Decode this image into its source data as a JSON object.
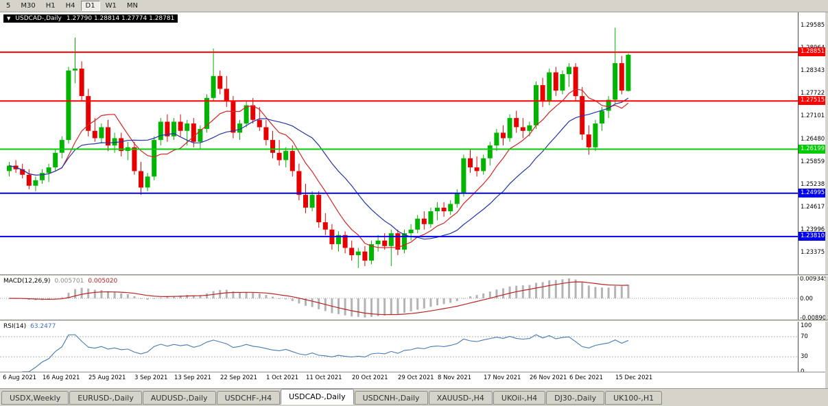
{
  "toolbar": {
    "timeframes": [
      "5",
      "M30",
      "H1",
      "H4",
      "D1",
      "W1",
      "MN"
    ],
    "active": "D1"
  },
  "chart": {
    "marker": "▼",
    "title": "USDCAD-,Daily",
    "ohlc": "1.27790 1.28814 1.27774 1.28781"
  },
  "indicators": {
    "macd": {
      "name": "MACD(12,26,9)",
      "value_main": "0.005701",
      "value_signal": "0.005020",
      "axis": [
        "0.009345",
        "0.00",
        "-0.00890"
      ]
    },
    "rsi": {
      "name": "RSI(14)",
      "value": "63.2477",
      "axis": [
        "100",
        "70",
        "30",
        "0"
      ],
      "levels": [
        70,
        30
      ]
    }
  },
  "tabs": [
    {
      "label": "USDX,Weekly"
    },
    {
      "label": "EURUSD-,Daily"
    },
    {
      "label": "AUDUSD-,Daily"
    },
    {
      "label": "USDCHF-,H4"
    },
    {
      "label": "USDCAD-,Daily",
      "active": true
    },
    {
      "label": "USDCNH-,Daily"
    },
    {
      "label": "XAUUSD-,H4"
    },
    {
      "label": "UKOil-,H4"
    },
    {
      "label": "DJ30-,Daily"
    },
    {
      "label": "UK100-,H1"
    }
  ],
  "chart_data": {
    "type": "candlestick",
    "symbol": "USDCAD",
    "period": "Daily",
    "last_ohlc": {
      "open": 1.2779,
      "high": 1.28814,
      "low": 1.27774,
      "close": 1.28781
    },
    "price_scale": {
      "max": 1.2994,
      "min": 1.22777
    },
    "y_axis_labels": [
      "1.29585",
      "1.28964",
      "1.28343",
      "1.27722",
      "1.27101",
      "1.26480",
      "1.25859",
      "1.25238",
      "1.24617",
      "1.23996",
      "1.23375"
    ],
    "x_labels": [
      {
        "label": "6 Aug 2021",
        "i": 0
      },
      {
        "label": "16 Aug 2021",
        "i": 6
      },
      {
        "label": "25 Aug 2021",
        "i": 13
      },
      {
        "label": "3 Sep 2021",
        "i": 20
      },
      {
        "label": "13 Sep 2021",
        "i": 26
      },
      {
        "label": "22 Sep 2021",
        "i": 33
      },
      {
        "label": "1 Oct 2021",
        "i": 40
      },
      {
        "label": "11 Oct 2021",
        "i": 46
      },
      {
        "label": "20 Oct 2021",
        "i": 53
      },
      {
        "label": "29 Oct 2021",
        "i": 60
      },
      {
        "label": "8 Nov 2021",
        "i": 66
      },
      {
        "label": "17 Nov 2021",
        "i": 73
      },
      {
        "label": "26 Nov 2021",
        "i": 80
      },
      {
        "label": "6 Dec 2021",
        "i": 86
      },
      {
        "label": "15 Dec 2021",
        "i": 93
      }
    ],
    "hlines": [
      {
        "price": 1.28851,
        "label": "1.28851",
        "color": "#ff0000"
      },
      {
        "price": 1.27515,
        "label": "1.27515",
        "color": "#ff0000"
      },
      {
        "price": 1.26199,
        "label": "1.26199",
        "color": "#00cc00"
      },
      {
        "price": 1.24995,
        "label": "1.24995",
        "color": "#0000ee"
      },
      {
        "price": 1.2381,
        "label": "1.23810",
        "color": "#0000ee"
      }
    ],
    "moving_averages": [
      {
        "period": 8,
        "color": "#d42424"
      },
      {
        "period": 17,
        "color": "#2233aa"
      }
    ],
    "colors": {
      "up": "#00b400",
      "down": "#e60000",
      "macd_hist": "#b4b4b4",
      "macd_signal": "#bb2222",
      "rsi": "#4579b4"
    },
    "ohlc": [
      [
        1.256,
        1.2585,
        1.2545,
        1.2575
      ],
      [
        1.2575,
        1.259,
        1.2555,
        1.2565
      ],
      [
        1.2565,
        1.258,
        1.254,
        1.255
      ],
      [
        1.255,
        1.2565,
        1.251,
        1.252
      ],
      [
        1.252,
        1.2545,
        1.2505,
        1.2535
      ],
      [
        1.2535,
        1.2565,
        1.2525,
        1.2555
      ],
      [
        1.2555,
        1.258,
        1.253,
        1.257
      ],
      [
        1.257,
        1.262,
        1.256,
        1.261
      ],
      [
        1.261,
        1.2655,
        1.2595,
        1.2645
      ],
      [
        1.2645,
        1.2845,
        1.2635,
        1.2835
      ],
      [
        1.2835,
        1.2925,
        1.28,
        1.284
      ],
      [
        1.284,
        1.286,
        1.275,
        1.2765
      ],
      [
        1.2765,
        1.2785,
        1.2655,
        1.267
      ],
      [
        1.267,
        1.2705,
        1.264,
        1.265
      ],
      [
        1.265,
        1.269,
        1.2635,
        1.268
      ],
      [
        1.268,
        1.27,
        1.2615,
        1.263
      ],
      [
        1.263,
        1.2665,
        1.261,
        1.265
      ],
      [
        1.265,
        1.2665,
        1.26,
        1.2615
      ],
      [
        1.2615,
        1.264,
        1.259,
        1.2625
      ],
      [
        1.2625,
        1.264,
        1.255,
        1.256
      ],
      [
        1.256,
        1.2585,
        1.2495,
        1.2515
      ],
      [
        1.2515,
        1.2555,
        1.2505,
        1.2545
      ],
      [
        1.2545,
        1.2655,
        1.2535,
        1.2645
      ],
      [
        1.2645,
        1.2705,
        1.263,
        1.2695
      ],
      [
        1.2695,
        1.2715,
        1.264,
        1.2655
      ],
      [
        1.2655,
        1.2705,
        1.2645,
        1.2695
      ],
      [
        1.2695,
        1.2715,
        1.2655,
        1.267
      ],
      [
        1.267,
        1.27,
        1.263,
        1.269
      ],
      [
        1.269,
        1.2705,
        1.2625,
        1.264
      ],
      [
        1.264,
        1.2685,
        1.262,
        1.2675
      ],
      [
        1.2675,
        1.277,
        1.2665,
        1.276
      ],
      [
        1.276,
        1.2895,
        1.275,
        1.282
      ],
      [
        1.282,
        1.2835,
        1.277,
        1.2785
      ],
      [
        1.2785,
        1.282,
        1.2735,
        1.275
      ],
      [
        1.275,
        1.2765,
        1.265,
        1.2665
      ],
      [
        1.2665,
        1.27,
        1.2645,
        1.269
      ],
      [
        1.269,
        1.275,
        1.268,
        1.274
      ],
      [
        1.274,
        1.276,
        1.269,
        1.27
      ],
      [
        1.27,
        1.2735,
        1.267,
        1.268
      ],
      [
        1.268,
        1.27,
        1.263,
        1.2645
      ],
      [
        1.2645,
        1.267,
        1.2595,
        1.261
      ],
      [
        1.261,
        1.2645,
        1.2575,
        1.259
      ],
      [
        1.259,
        1.2625,
        1.257,
        1.2615
      ],
      [
        1.2615,
        1.263,
        1.2545,
        1.256
      ],
      [
        1.256,
        1.258,
        1.248,
        1.2495
      ],
      [
        1.2495,
        1.2525,
        1.2445,
        1.246
      ],
      [
        1.246,
        1.2505,
        1.245,
        1.2495
      ],
      [
        1.2495,
        1.2505,
        1.2405,
        1.242
      ],
      [
        1.242,
        1.2445,
        1.2385,
        1.24
      ],
      [
        1.24,
        1.2415,
        1.2345,
        1.236
      ],
      [
        1.236,
        1.2395,
        1.234,
        1.2385
      ],
      [
        1.2385,
        1.2395,
        1.2335,
        1.235
      ],
      [
        1.235,
        1.237,
        1.2315,
        1.233
      ],
      [
        1.233,
        1.235,
        1.2295,
        1.234
      ],
      [
        1.234,
        1.2355,
        1.23,
        1.2315
      ],
      [
        1.2315,
        1.237,
        1.2305,
        1.236
      ],
      [
        1.236,
        1.2385,
        1.234,
        1.237
      ],
      [
        1.237,
        1.239,
        1.2345,
        1.2355
      ],
      [
        1.2355,
        1.24,
        1.23,
        1.239
      ],
      [
        1.239,
        1.24,
        1.233,
        1.2345
      ],
      [
        1.2345,
        1.24,
        1.2335,
        1.239
      ],
      [
        1.239,
        1.2415,
        1.237,
        1.24
      ],
      [
        1.24,
        1.244,
        1.239,
        1.243
      ],
      [
        1.243,
        1.245,
        1.24,
        1.2415
      ],
      [
        1.2415,
        1.246,
        1.2405,
        1.245
      ],
      [
        1.245,
        1.2475,
        1.2425,
        1.246
      ],
      [
        1.246,
        1.2475,
        1.2435,
        1.245
      ],
      [
        1.245,
        1.248,
        1.244,
        1.247
      ],
      [
        1.247,
        1.251,
        1.246,
        1.25
      ],
      [
        1.25,
        1.2605,
        1.249,
        1.2595
      ],
      [
        1.2595,
        1.262,
        1.2555,
        1.257
      ],
      [
        1.257,
        1.26,
        1.2545,
        1.256
      ],
      [
        1.256,
        1.2605,
        1.255,
        1.2595
      ],
      [
        1.2595,
        1.264,
        1.2575,
        1.263
      ],
      [
        1.263,
        1.2675,
        1.2615,
        1.2665
      ],
      [
        1.2665,
        1.2685,
        1.263,
        1.265
      ],
      [
        1.265,
        1.2715,
        1.264,
        1.2705
      ],
      [
        1.2705,
        1.2725,
        1.2665,
        1.268
      ],
      [
        1.268,
        1.2705,
        1.265,
        1.267
      ],
      [
        1.267,
        1.2695,
        1.2655,
        1.2685
      ],
      [
        1.2685,
        1.2805,
        1.2675,
        1.2795
      ],
      [
        1.2795,
        1.2815,
        1.2735,
        1.275
      ],
      [
        1.275,
        1.284,
        1.274,
        1.283
      ],
      [
        1.283,
        1.2845,
        1.2765,
        1.278
      ],
      [
        1.278,
        1.2835,
        1.277,
        1.2825
      ],
      [
        1.2825,
        1.2855,
        1.279,
        1.2845
      ],
      [
        1.2845,
        1.2855,
        1.275,
        1.2765
      ],
      [
        1.2765,
        1.279,
        1.2645,
        1.266
      ],
      [
        1.266,
        1.2685,
        1.2605,
        1.2625
      ],
      [
        1.2625,
        1.27,
        1.2615,
        1.269
      ],
      [
        1.269,
        1.2735,
        1.267,
        1.2725
      ],
      [
        1.2725,
        1.2765,
        1.2705,
        1.2755
      ],
      [
        1.2755,
        1.2952,
        1.2745,
        1.2855
      ],
      [
        1.2855,
        1.2875,
        1.277,
        1.278
      ],
      [
        1.2779,
        1.28814,
        1.27774,
        1.28781
      ]
    ]
  }
}
